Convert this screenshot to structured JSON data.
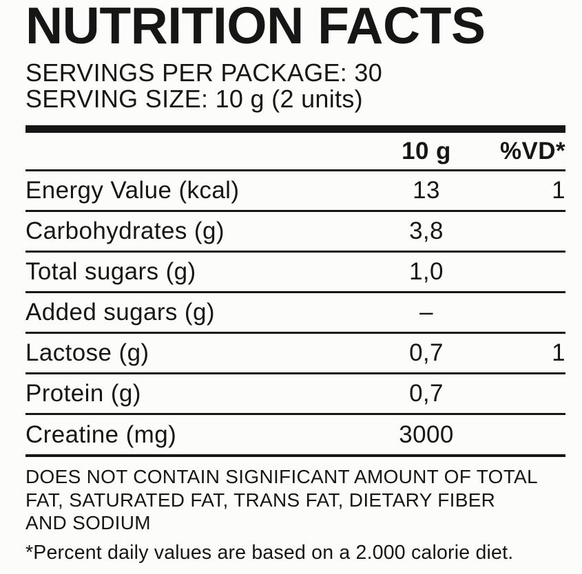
{
  "label": {
    "title": "NUTRITION FACTS",
    "servings_line": "SERVINGS PER PACKAGE: 30",
    "serving_size_line": "SERVING SIZE: 10 g (2 units)",
    "columns": {
      "amount": "10 g",
      "dv": "%VD*"
    },
    "rows": [
      {
        "name": "Energy Value (kcal)",
        "amount": "13",
        "dv": "1"
      },
      {
        "name": "Carbohydrates (g)",
        "amount": "3,8",
        "dv": ""
      },
      {
        "name": "Total sugars (g)",
        "amount": "1,0",
        "dv": ""
      },
      {
        "name": "Added sugars (g)",
        "amount": "–",
        "dv": ""
      },
      {
        "name": "Lactose (g)",
        "amount": "0,7",
        "dv": "1"
      },
      {
        "name": "Protein (g)",
        "amount": "0,7",
        "dv": ""
      },
      {
        "name": "Creatine (mg)",
        "amount": "3000",
        "dv": ""
      }
    ],
    "disclaimer_lines": [
      "DOES NOT CONTAIN SIGNIFICANT AMOUNT OF TOTAL",
      "FAT, SATURATED FAT, TRANS FAT, DIETARY FIBER",
      "AND SODIUM"
    ],
    "footnote": "*Percent daily values are based on a 2.000 calorie diet.",
    "colors": {
      "text": "#161616",
      "rule": "#161616",
      "background": "#fcfcfa"
    }
  }
}
